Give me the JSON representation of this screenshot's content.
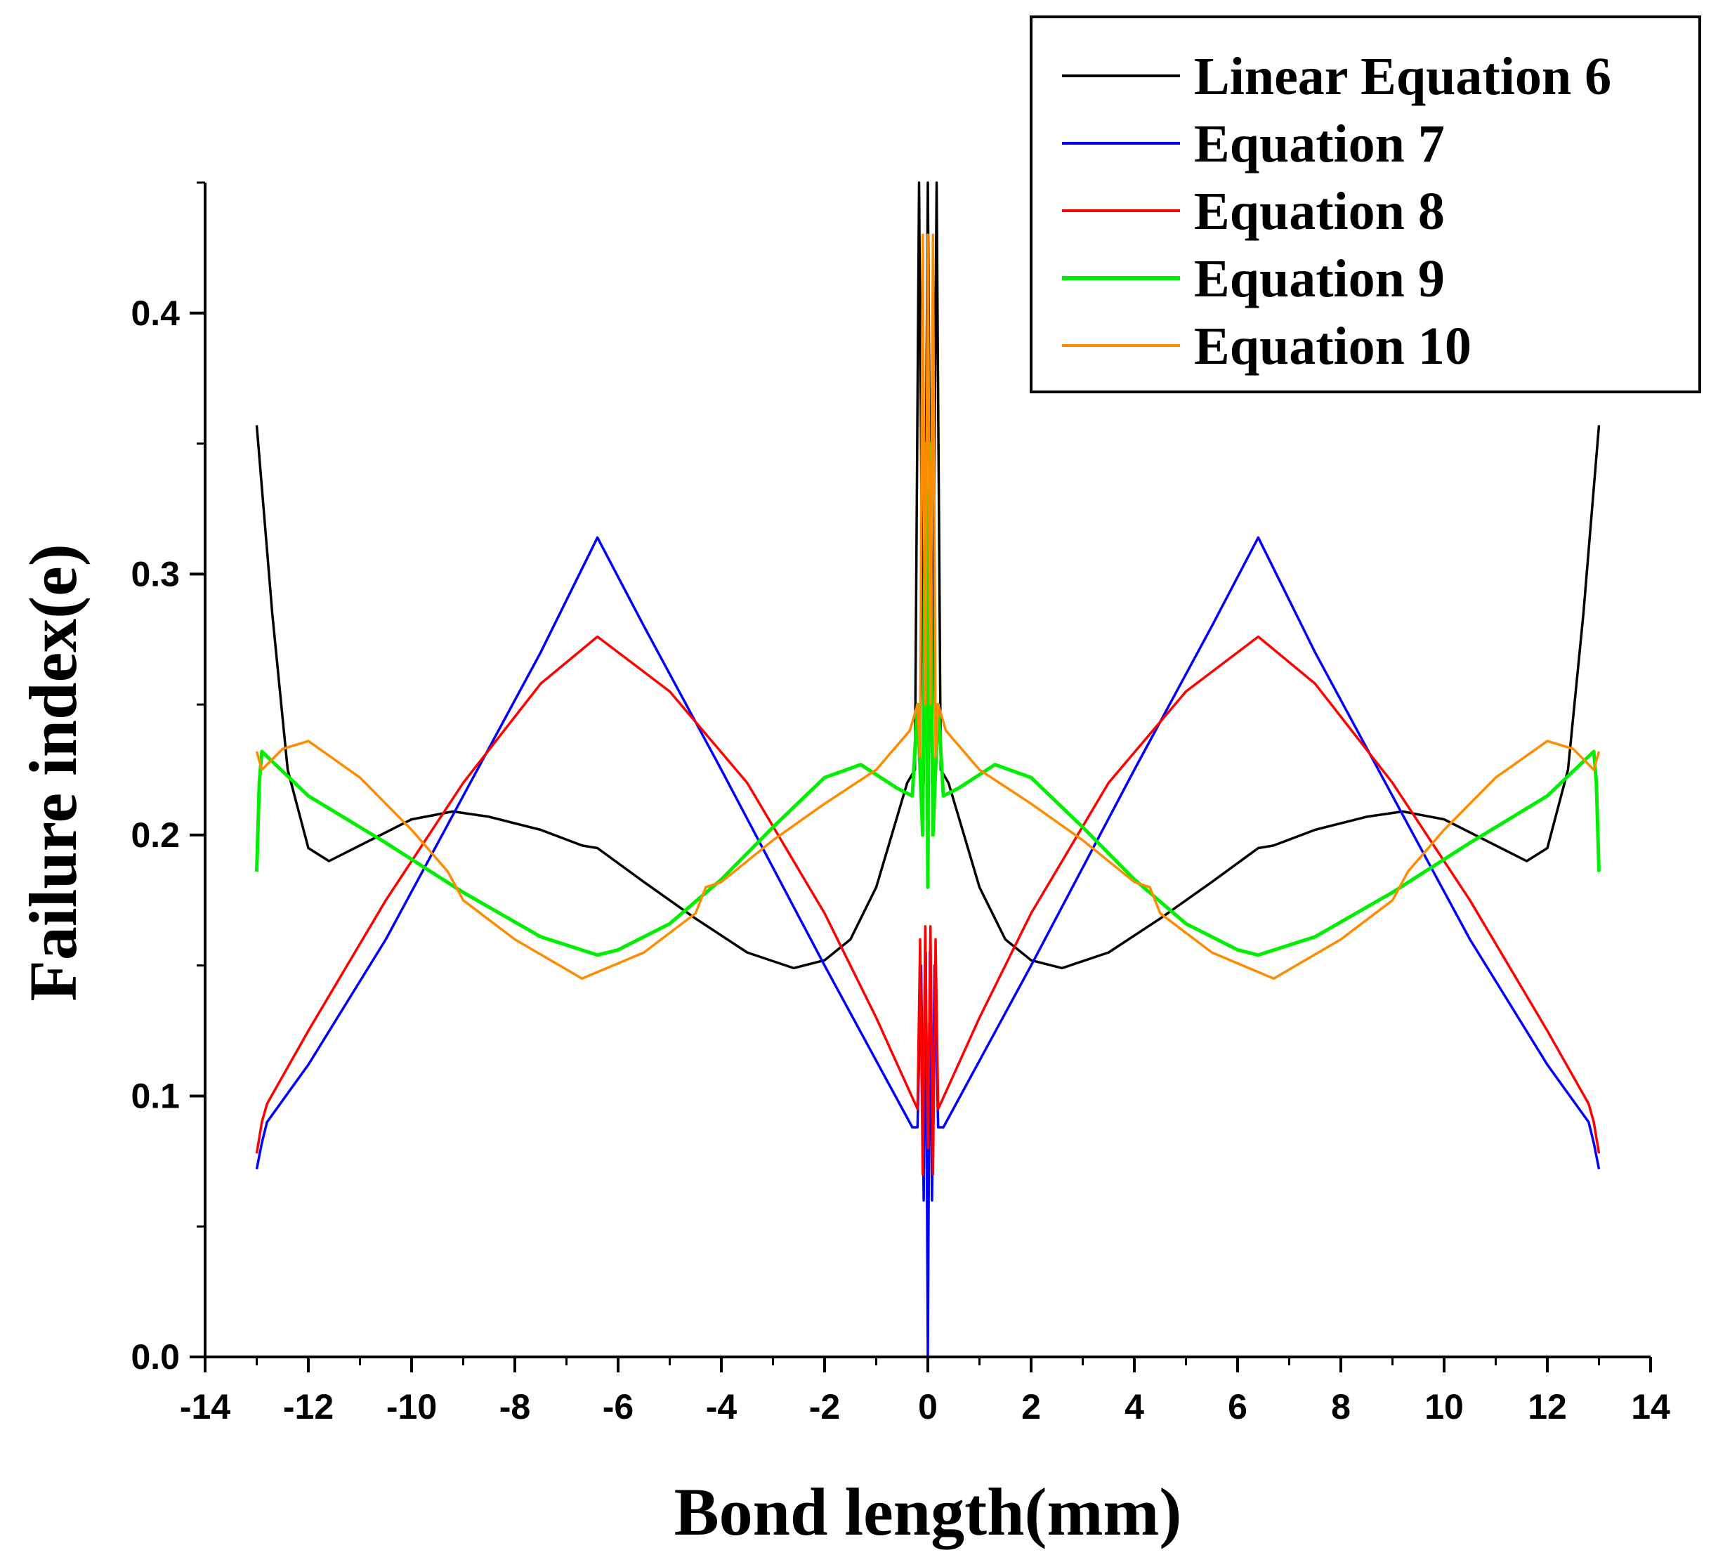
{
  "chart_data": {
    "type": "line",
    "title": "",
    "xlabel": "Bond length(mm)",
    "ylabel": "Failure index(e)",
    "xlim": [
      -14,
      14
    ],
    "ylim": [
      0.0,
      0.45
    ],
    "grid": false,
    "legend_position": "top-right",
    "x_ticks": [
      {
        "value": -14,
        "label": "-14"
      },
      {
        "value": -12,
        "label": "-12"
      },
      {
        "value": -10,
        "label": "-10"
      },
      {
        "value": -8,
        "label": "-8"
      },
      {
        "value": -6,
        "label": "-6"
      },
      {
        "value": -4,
        "label": "-4"
      },
      {
        "value": -2,
        "label": "-2"
      },
      {
        "value": 0,
        "label": "0"
      },
      {
        "value": 2,
        "label": "2"
      },
      {
        "value": 4,
        "label": "4"
      },
      {
        "value": 6,
        "label": "6"
      },
      {
        "value": 8,
        "label": "8"
      },
      {
        "value": 10,
        "label": "10"
      },
      {
        "value": 12,
        "label": "12"
      },
      {
        "value": 14,
        "label": "14"
      }
    ],
    "y_ticks": [
      {
        "value": 0.0,
        "label": "0.0"
      },
      {
        "value": 0.1,
        "label": "0.1"
      },
      {
        "value": 0.2,
        "label": "0.2"
      },
      {
        "value": 0.3,
        "label": "0.3"
      },
      {
        "value": 0.4,
        "label": "0.4"
      }
    ],
    "series": [
      {
        "name": "Linear Equation 6",
        "color": "#000000",
        "half": [
          [
            0.0,
            0.45
          ],
          [
            0.08,
            0.22
          ],
          [
            0.17,
            0.45
          ],
          [
            0.25,
            0.225
          ],
          [
            0.4,
            0.22
          ],
          [
            0.7,
            0.2
          ],
          [
            1.0,
            0.18
          ],
          [
            1.5,
            0.16
          ],
          [
            2.0,
            0.152
          ],
          [
            2.6,
            0.149
          ],
          [
            3.5,
            0.155
          ],
          [
            4.5,
            0.168
          ],
          [
            5.5,
            0.182
          ],
          [
            6.4,
            0.195
          ],
          [
            6.7,
            0.196
          ],
          [
            7.5,
            0.202
          ],
          [
            8.5,
            0.207
          ],
          [
            9.2,
            0.209
          ],
          [
            10.0,
            0.206
          ],
          [
            10.8,
            0.198
          ],
          [
            11.6,
            0.19
          ],
          [
            12.0,
            0.195
          ],
          [
            12.4,
            0.225
          ],
          [
            12.7,
            0.285
          ],
          [
            13.0,
            0.357
          ]
        ]
      },
      {
        "name": "Equation 7",
        "color": "#0000ff",
        "half": [
          [
            0.0,
            0.0
          ],
          [
            0.04,
            0.155
          ],
          [
            0.08,
            0.06
          ],
          [
            0.13,
            0.15
          ],
          [
            0.2,
            0.088
          ],
          [
            0.3,
            0.088
          ],
          [
            2.0,
            0.15
          ],
          [
            4.0,
            0.225
          ],
          [
            5.5,
            0.28
          ],
          [
            6.4,
            0.314
          ],
          [
            7.5,
            0.27
          ],
          [
            9.0,
            0.215
          ],
          [
            10.5,
            0.16
          ],
          [
            12.0,
            0.112
          ],
          [
            12.8,
            0.09
          ],
          [
            12.9,
            0.082
          ],
          [
            13.0,
            0.072
          ]
        ]
      },
      {
        "name": "Equation 8",
        "color": "#ff0000",
        "half": [
          [
            0.0,
            0.08
          ],
          [
            0.05,
            0.165
          ],
          [
            0.1,
            0.07
          ],
          [
            0.15,
            0.16
          ],
          [
            0.2,
            0.095
          ],
          [
            1.0,
            0.13
          ],
          [
            2.0,
            0.17
          ],
          [
            3.5,
            0.22
          ],
          [
            5.0,
            0.255
          ],
          [
            6.4,
            0.276
          ],
          [
            7.5,
            0.258
          ],
          [
            9.0,
            0.22
          ],
          [
            10.5,
            0.175
          ],
          [
            12.0,
            0.125
          ],
          [
            12.8,
            0.097
          ],
          [
            12.9,
            0.09
          ],
          [
            13.0,
            0.078
          ]
        ]
      },
      {
        "name": "Equation 9",
        "color": "#00ee00",
        "half": [
          [
            0.0,
            0.18
          ],
          [
            0.04,
            0.35
          ],
          [
            0.1,
            0.2
          ],
          [
            0.2,
            0.25
          ],
          [
            0.3,
            0.215
          ],
          [
            0.6,
            0.218
          ],
          [
            1.3,
            0.227
          ],
          [
            2.0,
            0.222
          ],
          [
            3.0,
            0.203
          ],
          [
            4.0,
            0.183
          ],
          [
            5.0,
            0.166
          ],
          [
            6.0,
            0.156
          ],
          [
            6.4,
            0.154
          ],
          [
            7.5,
            0.161
          ],
          [
            9.0,
            0.178
          ],
          [
            10.5,
            0.197
          ],
          [
            12.0,
            0.215
          ],
          [
            12.9,
            0.232
          ],
          [
            12.95,
            0.22
          ],
          [
            13.0,
            0.186
          ]
        ]
      },
      {
        "name": "Equation 10",
        "color": "#ff8c00",
        "half": [
          [
            0.0,
            0.43
          ],
          [
            0.05,
            0.25
          ],
          [
            0.1,
            0.43
          ],
          [
            0.15,
            0.23
          ],
          [
            0.2,
            0.25
          ],
          [
            0.35,
            0.24
          ],
          [
            1.0,
            0.225
          ],
          [
            2.0,
            0.212
          ],
          [
            3.0,
            0.198
          ],
          [
            4.0,
            0.182
          ],
          [
            4.3,
            0.18
          ],
          [
            4.5,
            0.17
          ],
          [
            5.5,
            0.155
          ],
          [
            6.7,
            0.145
          ],
          [
            8.0,
            0.16
          ],
          [
            9.0,
            0.175
          ],
          [
            9.3,
            0.186
          ],
          [
            10.0,
            0.202
          ],
          [
            11.0,
            0.222
          ],
          [
            12.0,
            0.236
          ],
          [
            12.5,
            0.233
          ],
          [
            12.9,
            0.225
          ],
          [
            13.0,
            0.232
          ]
        ]
      }
    ]
  }
}
